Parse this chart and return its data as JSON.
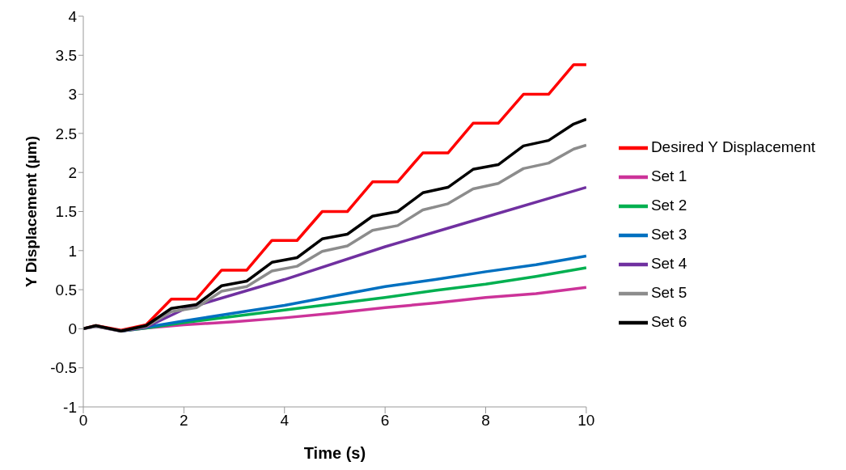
{
  "chart_data": {
    "type": "line",
    "xlabel": "Time (s)",
    "ylabel": "Y Displacement  (µm)",
    "xlim": [
      0,
      10
    ],
    "xticks": [
      0,
      2,
      4,
      6,
      8,
      10
    ],
    "ylim": [
      -1,
      4
    ],
    "yticks": [
      -1,
      -0.5,
      0,
      0.5,
      1,
      1.5,
      2,
      2.5,
      3,
      3.5,
      4
    ],
    "grid": false,
    "legend": "right",
    "marker": "none",
    "line_style": "solid",
    "series": [
      {
        "name": "Desired Y Displacement",
        "color": "#ff0000",
        "x": [
          0,
          0.25,
          0.75,
          1.25,
          1.75,
          2.25,
          2.75,
          3.25,
          3.75,
          4.25,
          4.75,
          5.25,
          5.75,
          6.25,
          6.75,
          7.25,
          7.75,
          8.25,
          8.75,
          9.25,
          9.75,
          10
        ],
        "values": [
          0,
          0.04,
          -0.02,
          0.05,
          0.38,
          0.38,
          0.75,
          0.75,
          1.13,
          1.13,
          1.5,
          1.5,
          1.88,
          1.88,
          2.25,
          2.25,
          2.63,
          2.63,
          3,
          3,
          3.38,
          3.38
        ]
      },
      {
        "name": "Set 1",
        "color": "#cc3399",
        "x": [
          0.75,
          1.25,
          2,
          3,
          4,
          5,
          6,
          7,
          8,
          9,
          10
        ],
        "values": [
          -0.03,
          0.01,
          0.05,
          0.09,
          0.14,
          0.2,
          0.27,
          0.33,
          0.4,
          0.45,
          0.53
        ]
      },
      {
        "name": "Set 2",
        "color": "#00b050",
        "x": [
          0.75,
          1.25,
          2,
          3,
          4,
          5,
          6,
          7,
          8,
          9,
          10
        ],
        "values": [
          -0.03,
          0.01,
          0.08,
          0.16,
          0.24,
          0.32,
          0.4,
          0.49,
          0.57,
          0.67,
          0.78
        ]
      },
      {
        "name": "Set 3",
        "color": "#0070c0",
        "x": [
          0.75,
          1.25,
          2,
          3,
          4,
          5,
          6,
          7,
          8,
          9,
          10
        ],
        "values": [
          -0.03,
          0.02,
          0.1,
          0.2,
          0.3,
          0.42,
          0.54,
          0.63,
          0.73,
          0.82,
          0.93
        ]
      },
      {
        "name": "Set 4",
        "color": "#7030a0",
        "x": [
          0,
          0.25,
          0.75,
          1.25,
          2,
          4,
          6,
          8,
          10
        ],
        "values": [
          0,
          0.03,
          -0.03,
          0.02,
          0.25,
          0.63,
          1.05,
          1.43,
          1.81
        ]
      },
      {
        "name": "Set 5",
        "color": "#8c8c8c",
        "x": [
          0,
          0.25,
          0.75,
          1.25,
          1.75,
          2.25,
          2.75,
          3.25,
          3.75,
          4.25,
          4.75,
          5.25,
          5.75,
          6.25,
          6.75,
          7.25,
          7.75,
          8.25,
          8.75,
          9.25,
          9.75,
          10
        ],
        "values": [
          0,
          0.03,
          -0.03,
          0.03,
          0.22,
          0.27,
          0.48,
          0.54,
          0.74,
          0.8,
          0.99,
          1.06,
          1.26,
          1.32,
          1.52,
          1.6,
          1.79,
          1.86,
          2.05,
          2.12,
          2.3,
          2.35
        ]
      },
      {
        "name": "Set 6",
        "color": "#000000",
        "x": [
          0,
          0.25,
          0.75,
          1.25,
          1.75,
          2.25,
          2.75,
          3.25,
          3.75,
          4.25,
          4.75,
          5.25,
          5.75,
          6.25,
          6.75,
          7.25,
          7.75,
          8.25,
          8.75,
          9.25,
          9.75,
          10
        ],
        "values": [
          0,
          0.04,
          -0.03,
          0.04,
          0.26,
          0.31,
          0.55,
          0.61,
          0.85,
          0.91,
          1.15,
          1.21,
          1.44,
          1.5,
          1.74,
          1.81,
          2.04,
          2.1,
          2.34,
          2.41,
          2.62,
          2.68
        ]
      }
    ]
  }
}
